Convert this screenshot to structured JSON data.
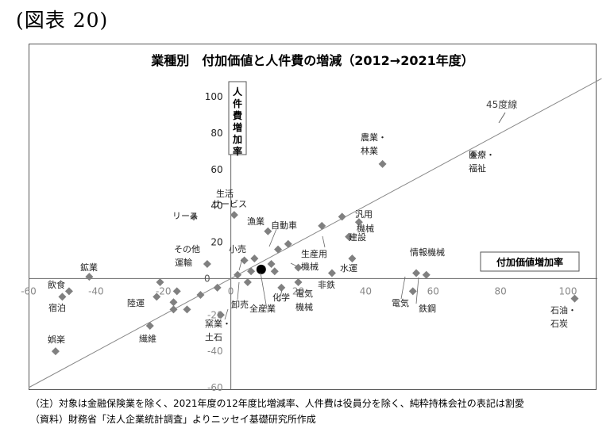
{
  "figure_label": "(図表 20)",
  "chart_data": {
    "type": "scatter",
    "title": "業種別　付加価値と人件費の増減（2012→2021年度）",
    "xlabel": "付加価値増加率",
    "ylabel": "人件費増加率",
    "xlim": [
      -60,
      110
    ],
    "ylim": [
      -60,
      110
    ],
    "x_ticks": [
      "-60",
      "-40",
      "-20",
      "0",
      "20",
      "40",
      "60",
      "80",
      "100"
    ],
    "y_ticks": [
      "-60",
      "-40",
      "-20",
      "0",
      "20",
      "40",
      "60",
      "80",
      "100"
    ],
    "reference_line": {
      "label": "45度線",
      "slope": 1
    },
    "marker_color": "#808080",
    "highlight_color": "#000000",
    "points": [
      {
        "label": "鉱業",
        "x": -42,
        "y": 1
      },
      {
        "label": "飲食",
        "x": -48,
        "y": -7
      },
      {
        "label": "宿泊",
        "x": -50,
        "y": -10
      },
      {
        "label": "娯楽",
        "x": -52,
        "y": -40
      },
      {
        "label": "陸運",
        "x": -17,
        "y": -13
      },
      {
        "label": "繊維",
        "x": -24,
        "y": -26
      },
      {
        "label": "リース",
        "x": -11,
        "y": 34
      },
      {
        "label": "その他運輸",
        "x": -7,
        "y": 8
      },
      {
        "label": "生活サービス",
        "x": 1,
        "y": 35
      },
      {
        "label": "小売",
        "x": 4,
        "y": 10
      },
      {
        "label": "卸売",
        "x": 5,
        "y": -2
      },
      {
        "label": "窯業・土石",
        "x": -3,
        "y": -20
      },
      {
        "label": "漁業",
        "x": 11,
        "y": 26
      },
      {
        "label": "自動車",
        "x": 14,
        "y": 16
      },
      {
        "label": "全産業",
        "x": 9,
        "y": 5,
        "highlight": true
      },
      {
        "label": "化学",
        "x": 15,
        "y": -5
      },
      {
        "label": "電気機械",
        "x": 20,
        "y": -2
      },
      {
        "label": "生産用機械",
        "x": 20,
        "y": 6
      },
      {
        "label": "汎用機械",
        "x": 38,
        "y": 31
      },
      {
        "label": "建設",
        "x": 35,
        "y": 23
      },
      {
        "label": "非鉄",
        "x": 30,
        "y": 3
      },
      {
        "label": "水運",
        "x": 36,
        "y": 11
      },
      {
        "label": "農業・林業",
        "x": 45,
        "y": 63
      },
      {
        "label": "医療・福祉",
        "x": 72,
        "y": 68
      },
      {
        "label": "情報機械",
        "x": 55,
        "y": 3
      },
      {
        "label": "電気",
        "x": 54,
        "y": -7
      },
      {
        "label": "鉄鋼",
        "x": 58,
        "y": 2
      },
      {
        "label": "石油・石炭",
        "x": 102,
        "y": -11
      },
      {
        "x": -21,
        "y": -2
      },
      {
        "x": -22,
        "y": -10
      },
      {
        "x": -16,
        "y": -7
      },
      {
        "x": -17,
        "y": -17
      },
      {
        "x": -13,
        "y": -17
      },
      {
        "x": -9,
        "y": -9
      },
      {
        "x": -4,
        "y": -5
      },
      {
        "x": 2,
        "y": 2
      },
      {
        "x": 6,
        "y": 4
      },
      {
        "x": 7,
        "y": 11
      },
      {
        "x": 12,
        "y": 8
      },
      {
        "x": 13,
        "y": 4
      },
      {
        "x": 17,
        "y": 19
      },
      {
        "x": 27,
        "y": 29
      },
      {
        "x": 33,
        "y": 34
      }
    ]
  },
  "notes": [
    "（注）対象は金融保険業を除く、2021年度の12年度比増減率、人件費は役員分を除く、純粋持株会社の表記は割愛",
    "（資料）財務省「法人企業統計調査」よりニッセイ基礎研究所作成"
  ]
}
